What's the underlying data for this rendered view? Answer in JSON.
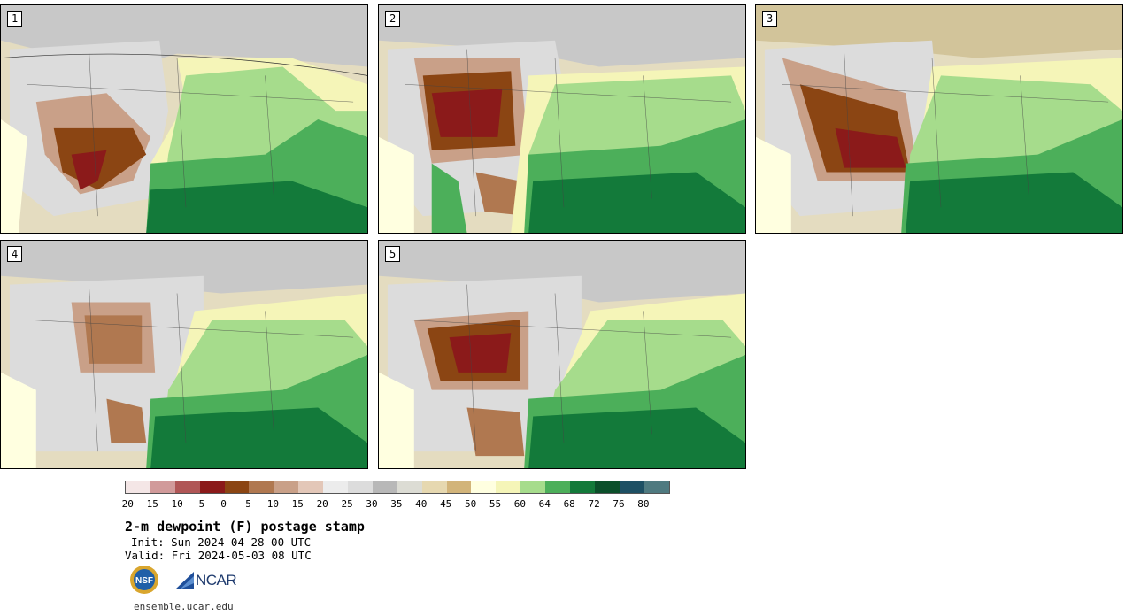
{
  "panels": [
    {
      "label": "1"
    },
    {
      "label": "2"
    },
    {
      "label": "3"
    },
    {
      "label": "4"
    },
    {
      "label": "5"
    }
  ],
  "colorbar": {
    "colors": [
      "#f4e6e6",
      "#d19a9a",
      "#b05656",
      "#8b1a1a",
      "#8b4513",
      "#b07850",
      "#c9a088",
      "#e3c7b8",
      "#ececec",
      "#dcdcdc",
      "#b8b8b8",
      "#dcdcd4",
      "#e6d8b0",
      "#d2b47a",
      "#ffffe0",
      "#f5f5b8",
      "#a6dc8c",
      "#4caf5a",
      "#137a3a",
      "#0b4f2a",
      "#1e5064",
      "#4f7a80"
    ],
    "ticks": [
      "−20",
      "−15",
      "−10",
      "−5",
      "0",
      "5",
      "10",
      "15",
      "20",
      "25",
      "30",
      "35",
      "40",
      "45",
      "50",
      "55",
      "60",
      "64",
      "68",
      "72",
      "76",
      "80"
    ]
  },
  "title": "2-m dewpoint (F) postage stamp",
  "init": "Init: Sun 2024-04-28 00 UTC",
  "valid": "Valid: Fri 2024-05-03 08 UTC",
  "logo": {
    "nsf": "NSF",
    "ncar": "NCAR"
  },
  "url": "ensemble.ucar.edu"
}
